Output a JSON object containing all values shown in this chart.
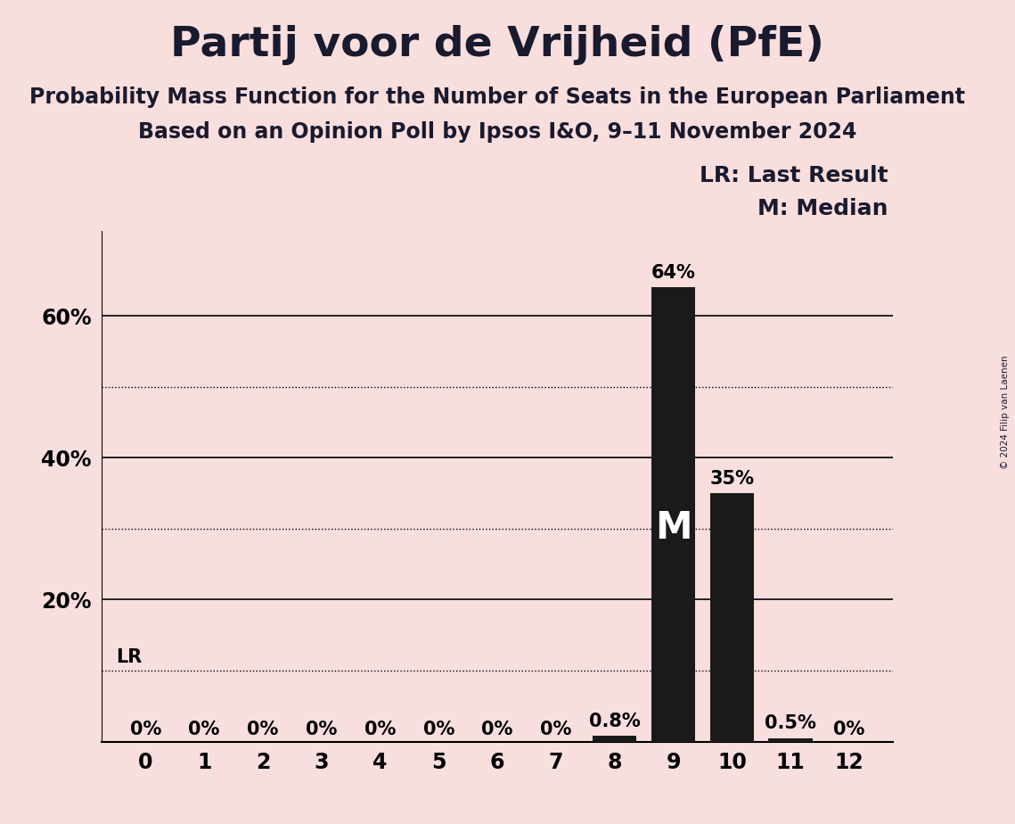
{
  "title": "Partij voor de Vrijheid (PfE)",
  "subtitle1": "Probability Mass Function for the Number of Seats in the European Parliament",
  "subtitle2": "Based on an Opinion Poll by Ipsos I&O, 9–11 November 2024",
  "categories": [
    0,
    1,
    2,
    3,
    4,
    5,
    6,
    7,
    8,
    9,
    10,
    11,
    12
  ],
  "values": [
    0.0,
    0.0,
    0.0,
    0.0,
    0.0,
    0.0,
    0.0,
    0.0,
    0.008,
    0.64,
    0.35,
    0.005,
    0.0
  ],
  "labels": [
    "0%",
    "0%",
    "0%",
    "0%",
    "0%",
    "0%",
    "0%",
    "0%",
    "0.8%",
    "64%",
    "35%",
    "0.5%",
    "0%"
  ],
  "bar_color": "#1a1a1a",
  "background_color": "#f9dede",
  "ylim": [
    0,
    0.72
  ],
  "solid_yticks": [
    0.2,
    0.4,
    0.6
  ],
  "dotted_yticks": [
    0.1,
    0.3,
    0.5
  ],
  "lr_value": 0.1,
  "lr_label": "LR",
  "median_seat": 9,
  "median_label": "M",
  "legend_lr": "LR: Last Result",
  "legend_m": "M: Median",
  "watermark": "© 2024 Filip van Laenen",
  "title_fontsize": 34,
  "subtitle_fontsize": 17,
  "label_fontsize": 15,
  "tick_fontsize": 17,
  "legend_fontsize": 18
}
